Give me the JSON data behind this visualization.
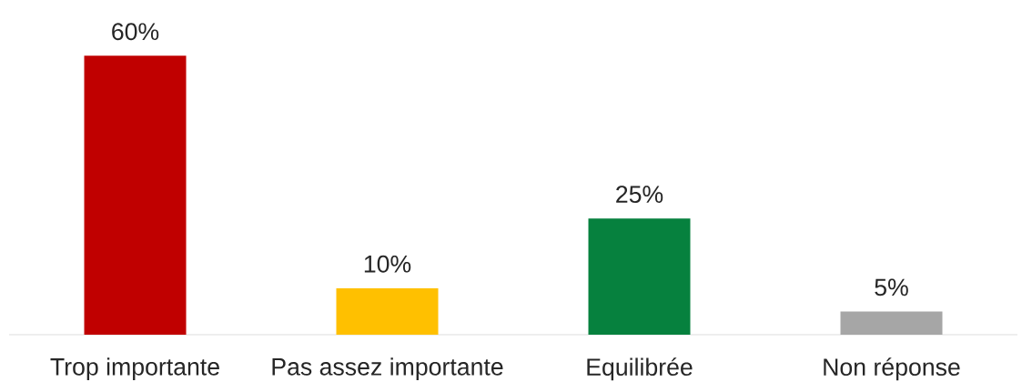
{
  "chart_data": {
    "type": "bar",
    "categories": [
      "Trop importante",
      "Pas assez importante",
      "Equilibrée",
      "Non réponse"
    ],
    "values": [
      60,
      10,
      25,
      5
    ],
    "colors": [
      "#c00000",
      "#ffc000",
      "#06813e",
      "#a6a6a6"
    ],
    "value_labels": [
      "60%",
      "10%",
      "25%",
      "5%"
    ]
  }
}
